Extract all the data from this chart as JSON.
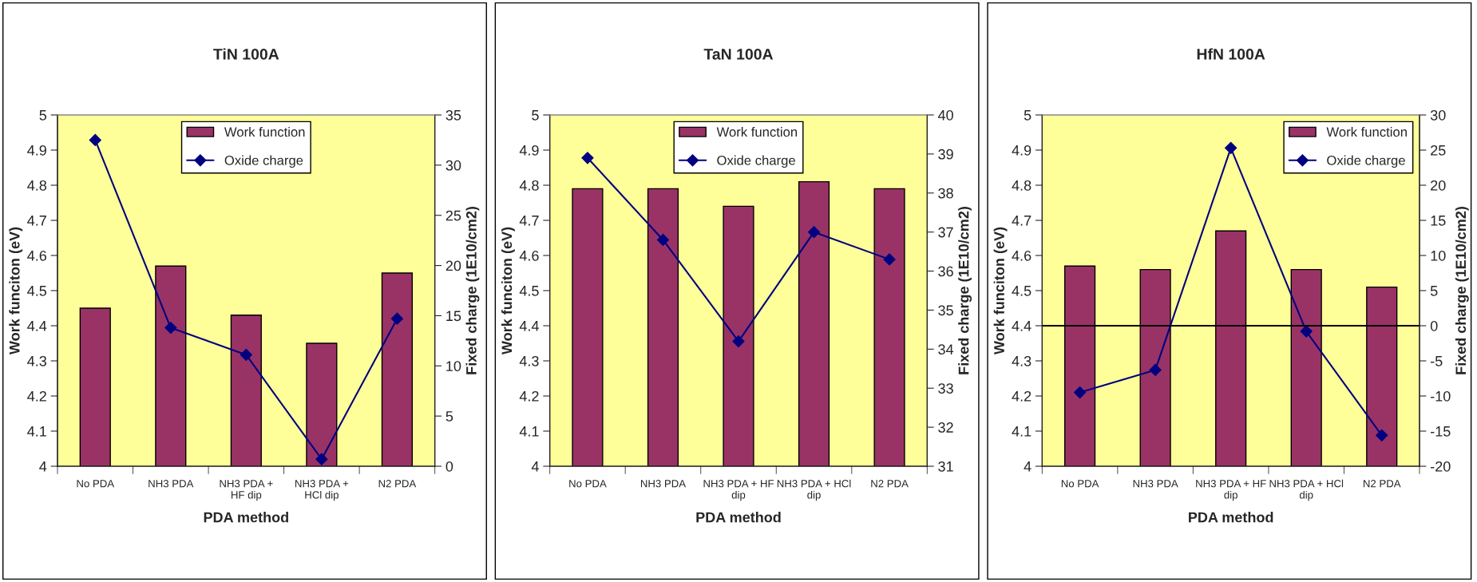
{
  "chart_data": [
    {
      "type": "bar",
      "title": "TiN 100A",
      "xlabel": "PDA method",
      "ylabel": "Work funciton (eV)",
      "y2label": "Fixed charge (1E10/cm2)",
      "categories": [
        "No PDA",
        "NH3 PDA",
        "NH3 PDA +\nHF dip",
        "NH3 PDA +\nHCl dip",
        "N2 PDA"
      ],
      "series": [
        {
          "name": "Work function",
          "color": "#993366",
          "values": [
            4.45,
            4.57,
            4.43,
            4.35,
            4.55
          ]
        },
        {
          "name": "Oxide charge",
          "type": "line",
          "axis": "y2",
          "color": "#000080",
          "marker": "diamond",
          "values": [
            32.5,
            13.8,
            11.1,
            0.7,
            14.7
          ]
        }
      ],
      "ylim": [
        4,
        5
      ],
      "yticks": [
        4,
        4.1,
        4.2,
        4.3,
        4.4,
        4.5,
        4.6,
        4.7,
        4.8,
        4.9,
        5
      ],
      "y2lim": [
        0,
        35
      ],
      "y2ticks": [
        0,
        5,
        10,
        15,
        20,
        25,
        30,
        35
      ],
      "legend": "top",
      "grid": false
    },
    {
      "type": "bar",
      "title": "TaN 100A",
      "xlabel": "PDA method",
      "ylabel": "Work funciton (eV)",
      "y2label": "Fixed charge (1E10/cm2)",
      "categories": [
        "No PDA",
        "NH3 PDA",
        "NH3 PDA + HF\ndip",
        "NH3 PDA + HCl\ndip",
        "N2 PDA"
      ],
      "series": [
        {
          "name": "Work function",
          "color": "#993366",
          "values": [
            4.79,
            4.79,
            4.74,
            4.81,
            4.79
          ]
        },
        {
          "name": "Oxide charge",
          "type": "line",
          "axis": "y2",
          "color": "#000080",
          "marker": "diamond",
          "values": [
            38.9,
            36.8,
            34.2,
            37.0,
            36.3
          ]
        }
      ],
      "ylim": [
        4,
        5
      ],
      "yticks": [
        4,
        4.1,
        4.2,
        4.3,
        4.4,
        4.5,
        4.6,
        4.7,
        4.8,
        4.9,
        5
      ],
      "y2lim": [
        31,
        40
      ],
      "y2ticks": [
        31,
        32,
        33,
        34,
        35,
        36,
        37,
        38,
        39,
        40
      ],
      "legend": "top",
      "grid": false
    },
    {
      "type": "bar",
      "title": "HfN 100A",
      "xlabel": "PDA method",
      "ylabel": "Work funciton (eV)",
      "y2label": "Fixed charge (1E10/cm2)",
      "categories": [
        "No PDA",
        "NH3 PDA",
        "NH3 PDA + HF\ndip",
        "NH3 PDA + HCl\ndip",
        "N2 PDA"
      ],
      "series": [
        {
          "name": "Work function",
          "color": "#993366",
          "values": [
            4.57,
            4.56,
            4.67,
            4.56,
            4.51
          ]
        },
        {
          "name": "Oxide charge",
          "type": "line",
          "axis": "y2",
          "color": "#000080",
          "marker": "diamond",
          "values": [
            -9.5,
            -6.3,
            25.3,
            -0.8,
            -15.6
          ]
        }
      ],
      "ylim": [
        4,
        5
      ],
      "yticks": [
        4,
        4.1,
        4.2,
        4.3,
        4.4,
        4.5,
        4.6,
        4.7,
        4.8,
        4.9,
        5
      ],
      "y2lim": [
        -20,
        30
      ],
      "y2ticks": [
        -20,
        -15,
        -10,
        -5,
        0,
        5,
        10,
        15,
        20,
        25,
        30
      ],
      "ref_lines": [
        {
          "axis": "y2",
          "value": 0,
          "color": "#000000"
        }
      ],
      "legend": "top right",
      "grid": false
    }
  ]
}
